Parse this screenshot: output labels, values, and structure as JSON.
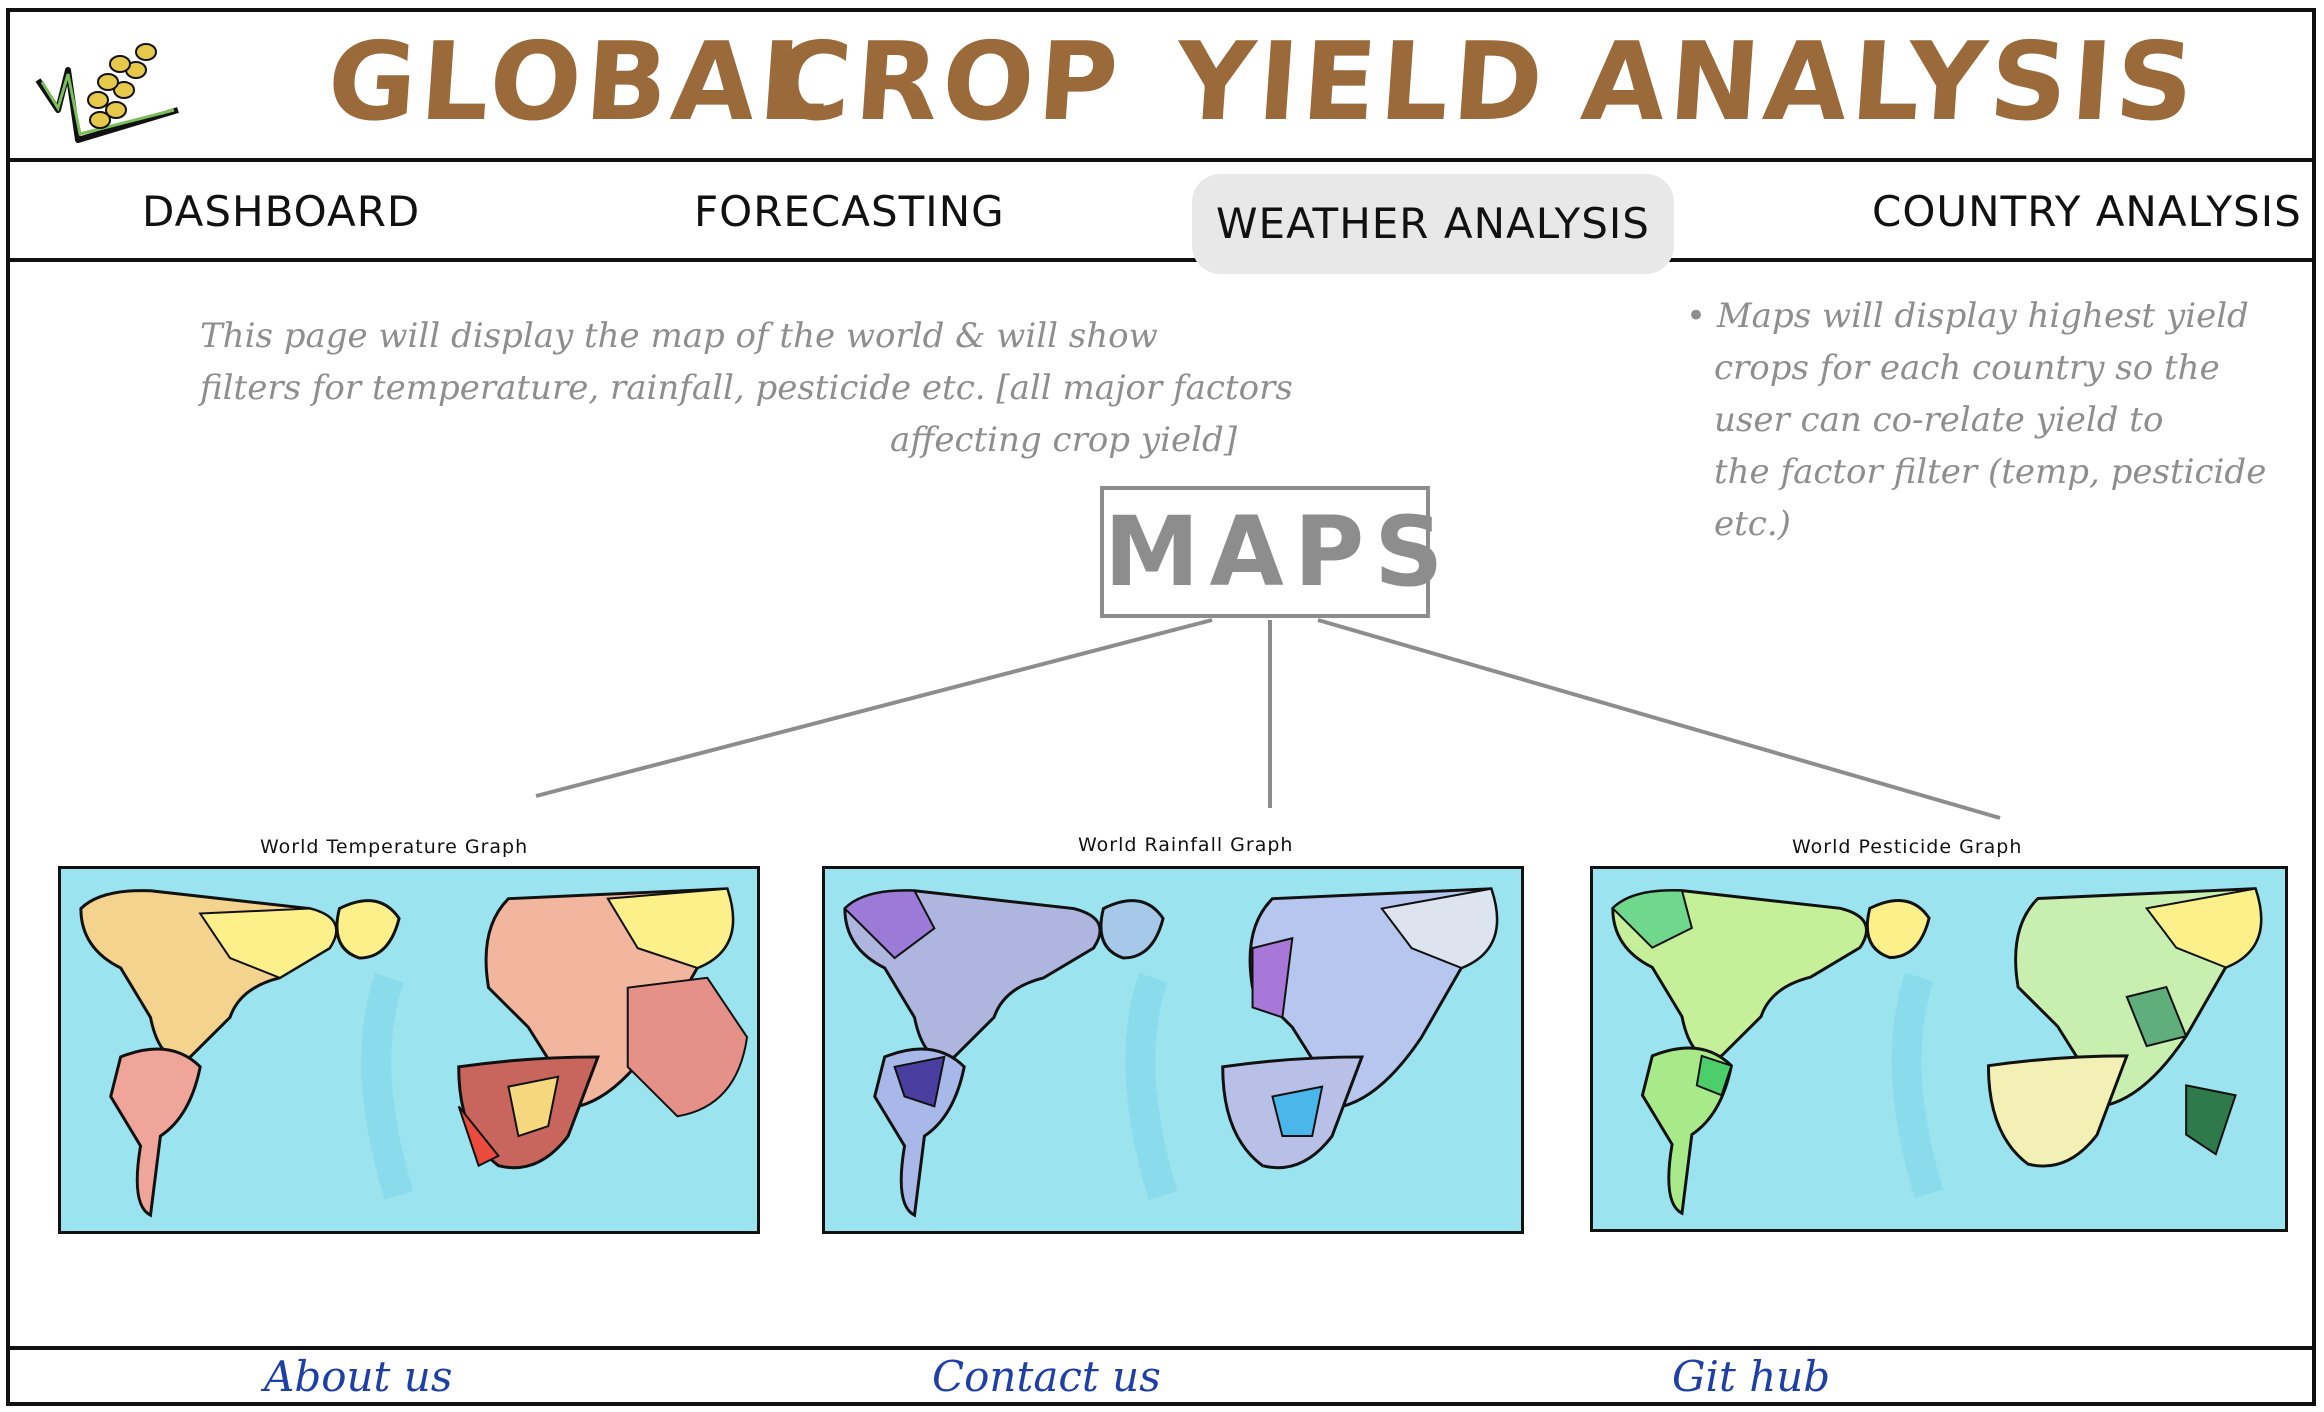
{
  "header": {
    "title_words": [
      "GLOBAL",
      "CROP",
      "YIELD",
      "ANALYSIS"
    ],
    "title_color": "#9b6a3b",
    "logo_icon": "crop-yield-logo-icon"
  },
  "nav": {
    "items": [
      {
        "label": "Dashboard"
      },
      {
        "label": "Forecasting"
      },
      {
        "label": "Weather Analysis",
        "active": true
      },
      {
        "label": "Country Analysis"
      }
    ]
  },
  "notes": {
    "left_line1": "This page will display the map of the world & will show",
    "left_line2": "filters for temperature, rainfall, pesticide etc. [all major factors",
    "left_line3": "affecting crop yield]",
    "right_line1": "• Maps will display highest yield",
    "right_line2": "crops for each country so the",
    "right_line3": "user can co-relate yield to",
    "right_line4": "the factor filter (temp, pesticide etc.)"
  },
  "maps_section": {
    "title": "MAPS",
    "maps": [
      {
        "title": "World Temperature Graph",
        "palette": "warm"
      },
      {
        "title": "World Rainfall Graph",
        "palette": "cool"
      },
      {
        "title": "World Pesticide Graph",
        "palette": "green"
      }
    ],
    "ocean_color": "#9be3ef"
  },
  "footer": {
    "links": [
      {
        "label": "About us"
      },
      {
        "label": "Contact us"
      },
      {
        "label": "Git hub"
      }
    ],
    "link_color": "#1e3fa6"
  }
}
